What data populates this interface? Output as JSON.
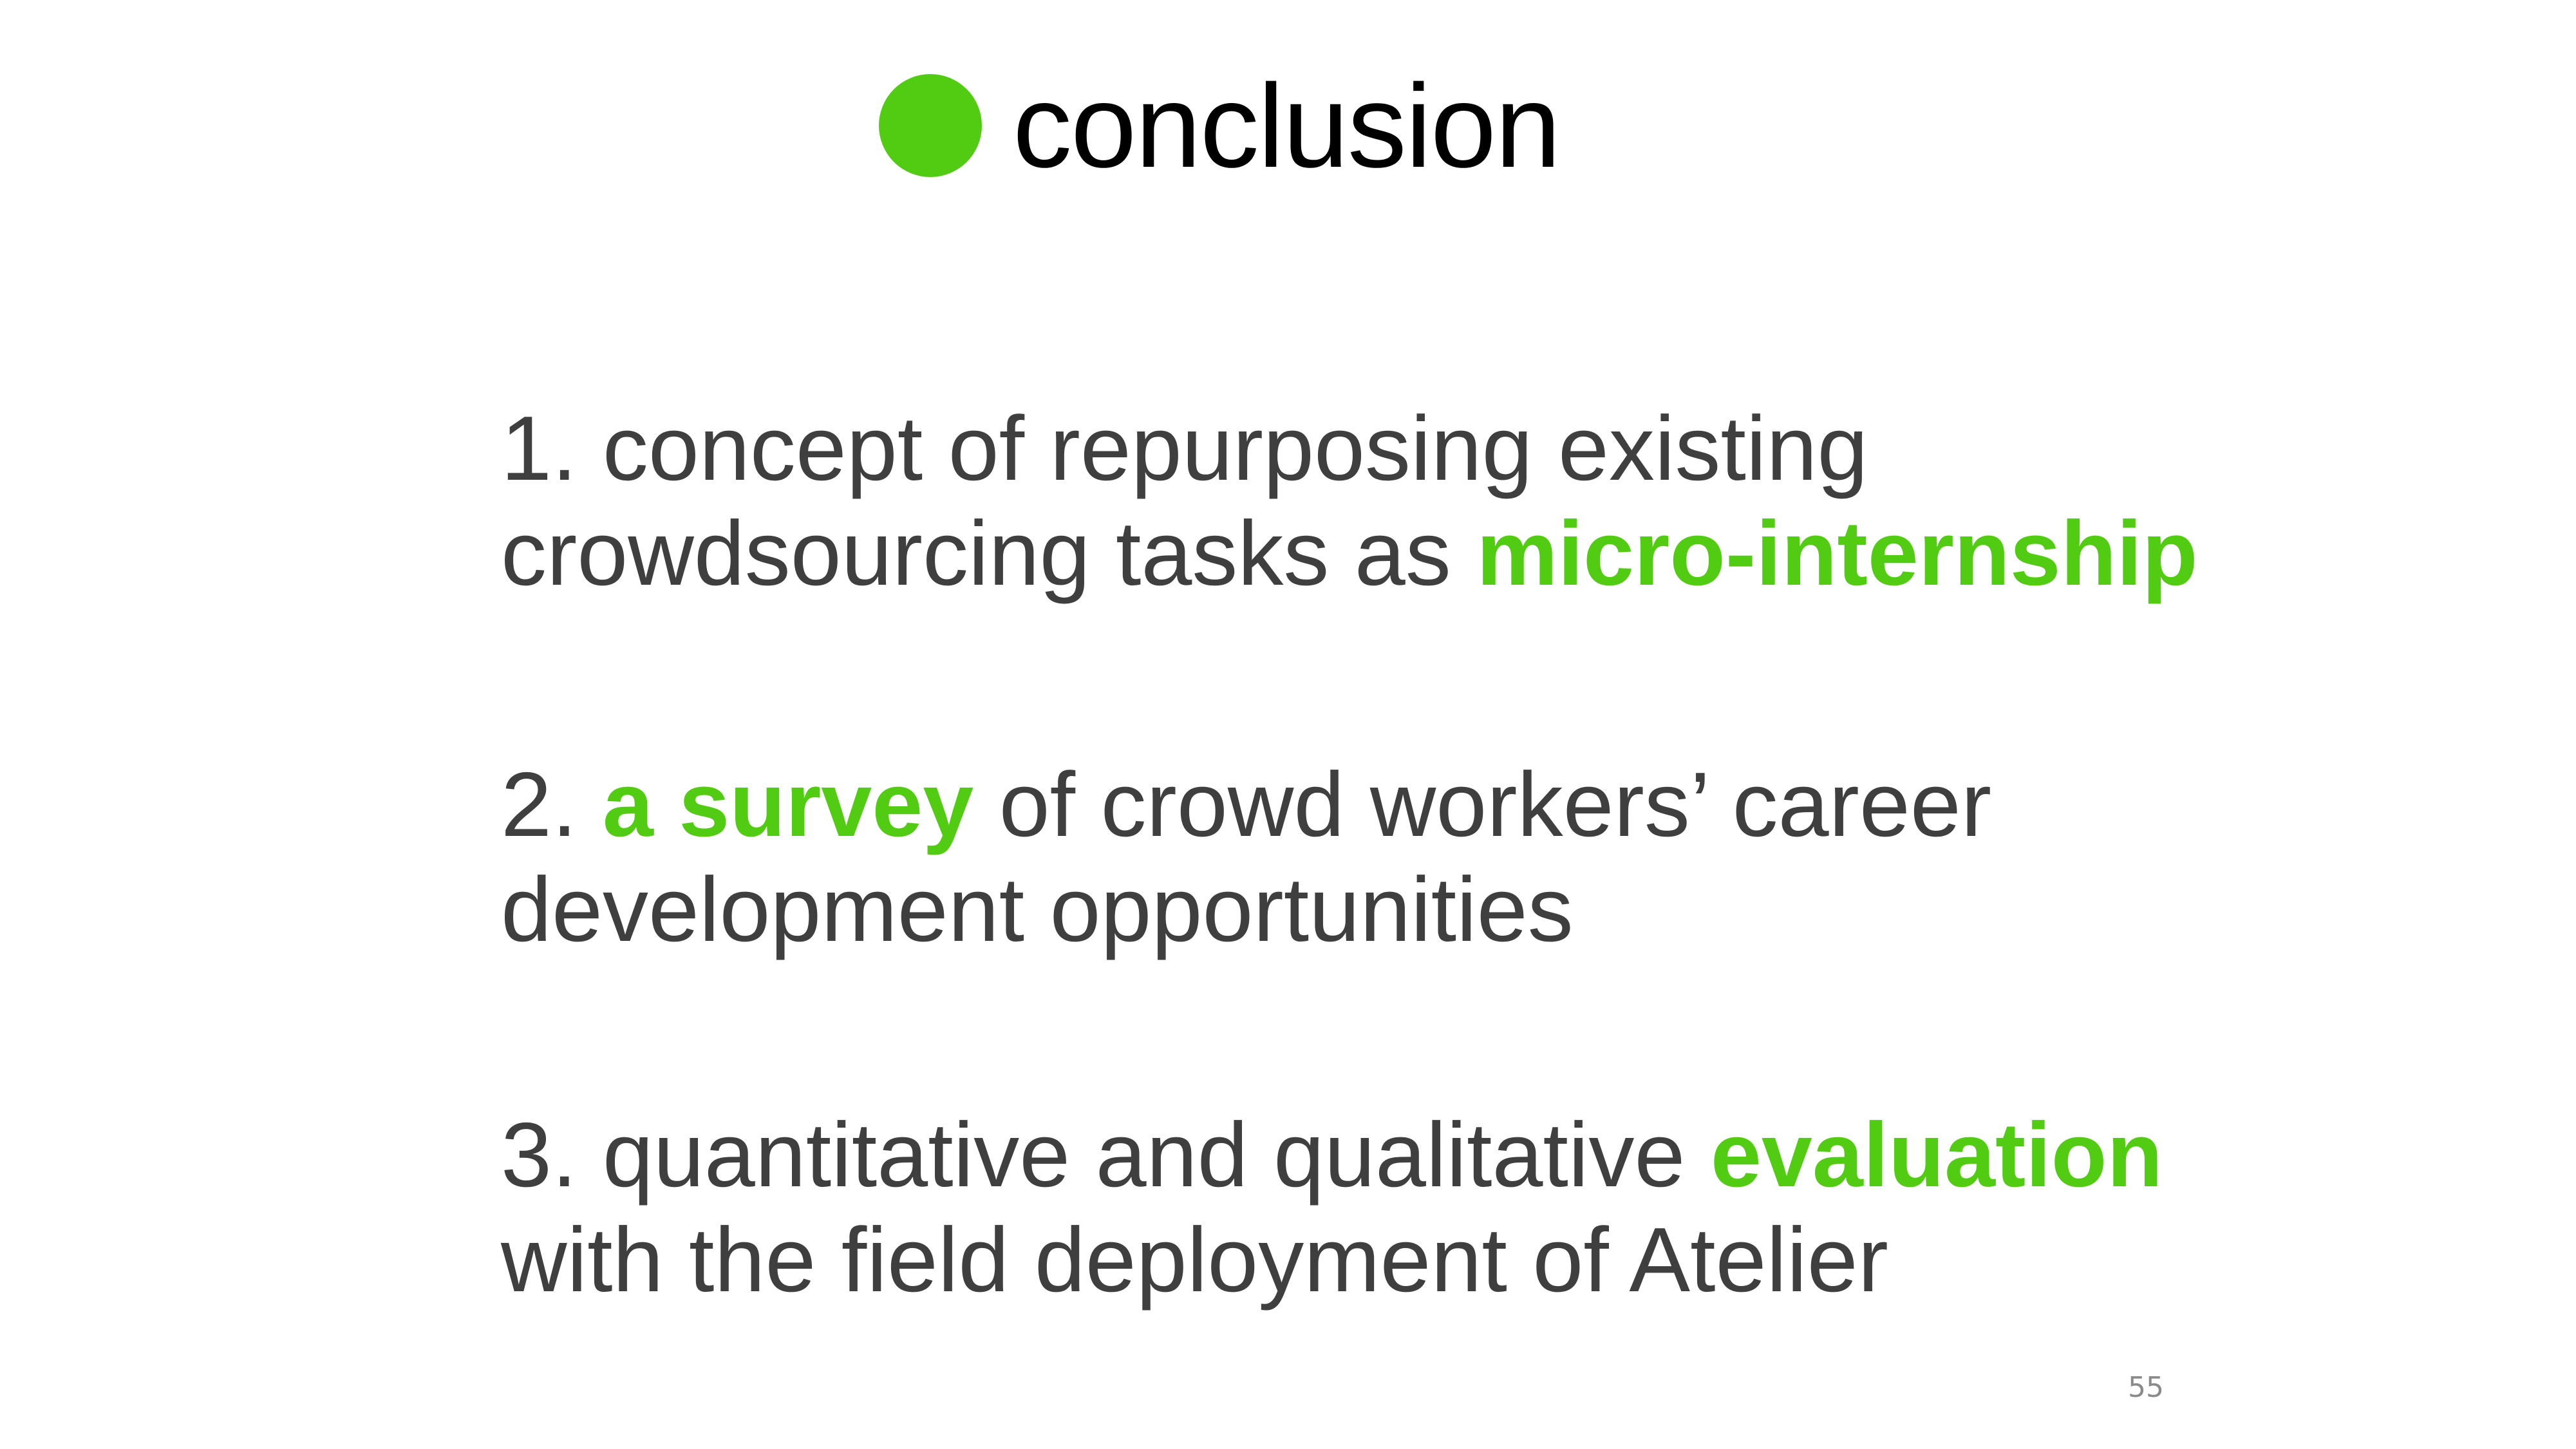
{
  "slide": {
    "title": "conclusion",
    "accent_color": "#52cc12",
    "text_color": "#3f3f3f",
    "page_number": "55"
  },
  "items": [
    {
      "line1": "1. concept of repurposing existing",
      "line2_pre": "crowdsourcing tasks as ",
      "line2_highlight": "micro-internship"
    },
    {
      "line1_pre": "2. ",
      "line1_highlight": "a survey",
      "line1_post": " of crowd workers’ career",
      "line2": "development opportunities"
    },
    {
      "line1_pre": "3. quantitative and qualitative ",
      "line1_highlight": "evaluation",
      "line2": "with the field deployment of Atelier"
    }
  ]
}
